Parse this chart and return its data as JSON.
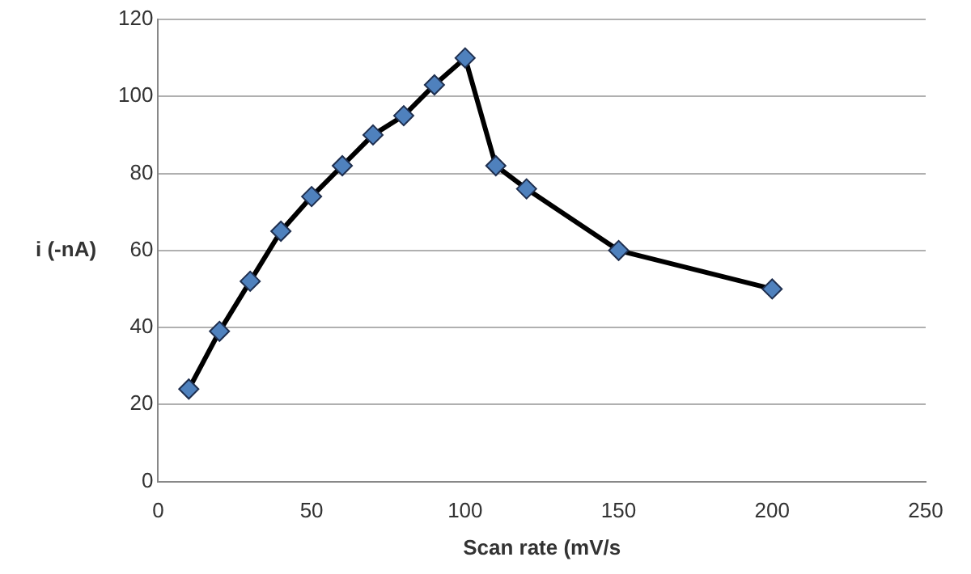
{
  "chart_data": {
    "type": "line",
    "xlabel": "Scan rate (mV/s",
    "ylabel": "i (-nA)",
    "x": [
      10,
      20,
      30,
      40,
      50,
      60,
      70,
      80,
      90,
      100,
      110,
      120,
      150,
      200
    ],
    "series": [
      {
        "color": "#000000",
        "values": [
          24,
          39,
          52,
          65,
          74,
          82,
          90,
          95,
          103,
          110,
          82,
          76,
          60,
          50
        ]
      }
    ],
    "marker": "diamond",
    "line_style": "solid",
    "grid": "y",
    "legend": false,
    "xlim": [
      0,
      250
    ],
    "xticks": [
      0,
      50,
      100,
      150,
      200,
      250
    ],
    "ylim": [
      0,
      120
    ],
    "yticks": [
      0,
      20,
      40,
      60,
      80,
      100,
      120
    ]
  }
}
